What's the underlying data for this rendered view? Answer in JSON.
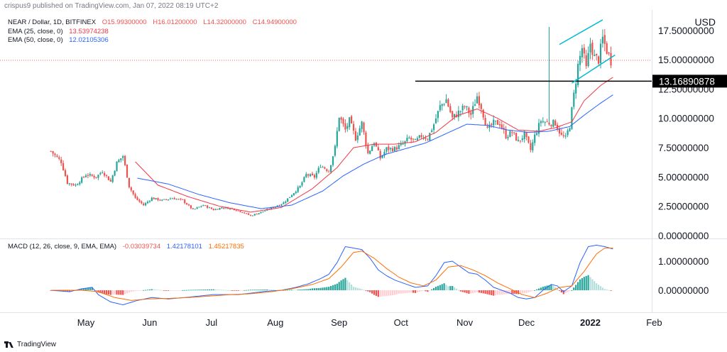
{
  "credit": "crispus9 published on TradingView.com, Jan 07, 2022 08:19 UTC+2",
  "brand": "TradingView",
  "legend": {
    "main": "NEAR / Dollar, 1D, BITFINEX",
    "ohlc": [
      "O15.99300000",
      "H16.01200000",
      "L14.32000000",
      "C14.94900000"
    ],
    "ema25": {
      "label": "EMA (25, close, 0)",
      "value": "13.53974238",
      "color": "#f23645"
    },
    "ema50": {
      "label": "EMA (50, close, 0)",
      "value": "12.02105306",
      "color": "#2962ff"
    },
    "macd": {
      "label": "MACD (12, 26, close, 9, EMA, EMA)",
      "hist": "-0.03039734",
      "macd": "1.42178101",
      "signal": "1.45217835"
    }
  },
  "colors": {
    "up": "#26a69a",
    "down": "#ef5350",
    "macd": "#2962ff",
    "signal": "#ff6d00",
    "channel": "#00bcd4",
    "level": "#000000"
  },
  "chart_data": {
    "type": "candlestick",
    "currency": "USD",
    "price_axis": {
      "ylim": [
        0,
        19
      ],
      "ticks": [
        "17.50000000",
        "15.00000000",
        "12.50000000",
        "10.00000000",
        "7.50000000",
        "5.00000000",
        "2.50000000",
        "0.00000000"
      ],
      "tick_values": [
        17.5,
        15,
        12.5,
        10,
        7.5,
        5,
        2.5,
        0
      ]
    },
    "macd_axis": {
      "ylim": [
        -0.6,
        1.75
      ],
      "ticks": [
        "1.00000000",
        "0.00000000"
      ],
      "tick_values": [
        1,
        0
      ]
    },
    "x_axis": {
      "labels": [
        "May",
        "Jun",
        "Jul",
        "Aug",
        "Sep",
        "Oct",
        "Nov",
        "Dec",
        "2022",
        "Feb"
      ],
      "label_days": [
        0,
        31,
        61,
        92,
        123,
        153,
        184,
        214,
        245,
        276
      ]
    },
    "current_price_label": "14.94900000",
    "horizontal_level": {
      "value": 13.1689,
      "label": "13.16890878",
      "start_day": 160
    },
    "channel": {
      "upper": [
        [
          230,
          16.3
        ],
        [
          251,
          18.4
        ]
      ],
      "lower": [
        [
          236,
          13.0
        ],
        [
          257,
          15.4
        ]
      ]
    },
    "close_anchors": [
      [
        -17,
        7.2
      ],
      [
        -12,
        6.3
      ],
      [
        -9,
        4.5
      ],
      [
        -5,
        4.3
      ],
      [
        0,
        5.2
      ],
      [
        5,
        5.0
      ],
      [
        8,
        5.5
      ],
      [
        12,
        4.6
      ],
      [
        15,
        6.2
      ],
      [
        18,
        6.8
      ],
      [
        21,
        4.2
      ],
      [
        24,
        3.2
      ],
      [
        28,
        2.6
      ],
      [
        32,
        3.2
      ],
      [
        37,
        3.0
      ],
      [
        42,
        3.2
      ],
      [
        47,
        3.0
      ],
      [
        52,
        2.2
      ],
      [
        57,
        2.6
      ],
      [
        62,
        2.2
      ],
      [
        66,
        2.4
      ],
      [
        71,
        2.3
      ],
      [
        76,
        2.0
      ],
      [
        80,
        1.7
      ],
      [
        85,
        2.0
      ],
      [
        88,
        2.2
      ],
      [
        92,
        2.5
      ],
      [
        96,
        2.8
      ],
      [
        100,
        3.5
      ],
      [
        104,
        4.2
      ],
      [
        107,
        5.2
      ],
      [
        111,
        5.0
      ],
      [
        114,
        6.0
      ],
      [
        118,
        5.5
      ],
      [
        121,
        7.5
      ],
      [
        123,
        10.2
      ],
      [
        126,
        9.0
      ],
      [
        128,
        9.8
      ],
      [
        131,
        8.3
      ],
      [
        134,
        9.6
      ],
      [
        137,
        7.0
      ],
      [
        140,
        8.0
      ],
      [
        143,
        6.6
      ],
      [
        146,
        7.4
      ],
      [
        150,
        7.4
      ],
      [
        154,
        7.8
      ],
      [
        157,
        8.3
      ],
      [
        160,
        8.0
      ],
      [
        163,
        8.5
      ],
      [
        166,
        8.3
      ],
      [
        169,
        9.5
      ],
      [
        172,
        11.0
      ],
      [
        175,
        11.6
      ],
      [
        178,
        10.0
      ],
      [
        181,
        10.5
      ],
      [
        184,
        11.0
      ],
      [
        187,
        10.3
      ],
      [
        190,
        11.9
      ],
      [
        192,
        11.0
      ],
      [
        195,
        9.0
      ],
      [
        198,
        9.6
      ],
      [
        201,
        9.6
      ],
      [
        204,
        8.5
      ],
      [
        207,
        8.8
      ],
      [
        210,
        8.0
      ],
      [
        213,
        8.6
      ],
      [
        216,
        7.3
      ],
      [
        218,
        8.5
      ],
      [
        221,
        9.8
      ],
      [
        225,
        9.6
      ],
      [
        228,
        9.6
      ],
      [
        231,
        8.5
      ],
      [
        233,
        8.3
      ],
      [
        235,
        9.4
      ],
      [
        237,
        12.0
      ],
      [
        239,
        14.5
      ],
      [
        241,
        16.0
      ],
      [
        243,
        14.2
      ],
      [
        245,
        16.4
      ],
      [
        247,
        15.2
      ],
      [
        249,
        15.0
      ],
      [
        251,
        16.8
      ],
      [
        253,
        15.8
      ],
      [
        255,
        14.9
      ]
    ],
    "ema25_anchors": [
      [
        24,
        6.3
      ],
      [
        35,
        4.3
      ],
      [
        50,
        3.3
      ],
      [
        65,
        2.5
      ],
      [
        80,
        2.0
      ],
      [
        95,
        2.4
      ],
      [
        110,
        4.0
      ],
      [
        122,
        5.8
      ],
      [
        130,
        7.5
      ],
      [
        140,
        7.8
      ],
      [
        150,
        7.8
      ],
      [
        160,
        8.0
      ],
      [
        170,
        8.8
      ],
      [
        180,
        10.2
      ],
      [
        190,
        10.8
      ],
      [
        200,
        10.0
      ],
      [
        210,
        9.0
      ],
      [
        220,
        8.9
      ],
      [
        228,
        9.2
      ],
      [
        236,
        9.7
      ],
      [
        242,
        11.5
      ],
      [
        250,
        12.8
      ],
      [
        256,
        13.5
      ]
    ],
    "ema50_anchors": [
      [
        25,
        4.9
      ],
      [
        40,
        4.4
      ],
      [
        55,
        3.5
      ],
      [
        70,
        2.8
      ],
      [
        85,
        2.3
      ],
      [
        100,
        2.6
      ],
      [
        115,
        3.8
      ],
      [
        125,
        5.1
      ],
      [
        135,
        6.1
      ],
      [
        145,
        6.9
      ],
      [
        155,
        7.4
      ],
      [
        165,
        7.9
      ],
      [
        175,
        8.7
      ],
      [
        185,
        9.5
      ],
      [
        195,
        9.4
      ],
      [
        205,
        9.0
      ],
      [
        215,
        8.8
      ],
      [
        225,
        8.9
      ],
      [
        235,
        9.3
      ],
      [
        243,
        10.4
      ],
      [
        250,
        11.3
      ],
      [
        256,
        12.0
      ]
    ],
    "macd_anchors": [
      [
        -17,
        0.0
      ],
      [
        -8,
        -0.05
      ],
      [
        -2,
        0.05
      ],
      [
        3,
        0.1
      ],
      [
        6,
        -0.15
      ],
      [
        12,
        -0.4
      ],
      [
        18,
        -0.5
      ],
      [
        25,
        -0.35
      ],
      [
        32,
        -0.25
      ],
      [
        40,
        -0.3
      ],
      [
        48,
        -0.25
      ],
      [
        55,
        -0.2
      ],
      [
        62,
        -0.15
      ],
      [
        68,
        -0.15
      ],
      [
        74,
        -0.15
      ],
      [
        80,
        -0.1
      ],
      [
        88,
        -0.03
      ],
      [
        95,
        0.0
      ],
      [
        102,
        0.1
      ],
      [
        108,
        0.22
      ],
      [
        114,
        0.4
      ],
      [
        118,
        0.55
      ],
      [
        122,
        0.95
      ],
      [
        126,
        1.5
      ],
      [
        130,
        1.45
      ],
      [
        134,
        1.4
      ],
      [
        138,
        1.1
      ],
      [
        142,
        0.7
      ],
      [
        146,
        0.5
      ],
      [
        150,
        0.35
      ],
      [
        154,
        0.25
      ],
      [
        160,
        0.1
      ],
      [
        166,
        0.15
      ],
      [
        170,
        0.5
      ],
      [
        174,
        0.95
      ],
      [
        178,
        1.0
      ],
      [
        182,
        0.8
      ],
      [
        186,
        0.6
      ],
      [
        190,
        0.55
      ],
      [
        194,
        0.35
      ],
      [
        198,
        0.1
      ],
      [
        202,
        0.0
      ],
      [
        206,
        -0.1
      ],
      [
        210,
        -0.25
      ],
      [
        214,
        -0.3
      ],
      [
        218,
        -0.25
      ],
      [
        222,
        0.0
      ],
      [
        226,
        0.2
      ],
      [
        229,
        0.15
      ],
      [
        232,
        -0.05
      ],
      [
        236,
        0.15
      ],
      [
        240,
        0.95
      ],
      [
        244,
        1.5
      ],
      [
        248,
        1.55
      ],
      [
        252,
        1.5
      ],
      [
        256,
        1.42
      ]
    ],
    "signal_anchors": [
      [
        -17,
        0.0
      ],
      [
        -2,
        0.0
      ],
      [
        6,
        -0.05
      ],
      [
        14,
        -0.25
      ],
      [
        22,
        -0.35
      ],
      [
        30,
        -0.3
      ],
      [
        40,
        -0.28
      ],
      [
        50,
        -0.25
      ],
      [
        60,
        -0.2
      ],
      [
        70,
        -0.15
      ],
      [
        80,
        -0.12
      ],
      [
        90,
        -0.05
      ],
      [
        100,
        0.05
      ],
      [
        110,
        0.2
      ],
      [
        118,
        0.4
      ],
      [
        124,
        0.8
      ],
      [
        130,
        1.3
      ],
      [
        134,
        1.35
      ],
      [
        140,
        1.1
      ],
      [
        146,
        0.75
      ],
      [
        152,
        0.45
      ],
      [
        158,
        0.25
      ],
      [
        164,
        0.15
      ],
      [
        170,
        0.35
      ],
      [
        176,
        0.8
      ],
      [
        182,
        0.85
      ],
      [
        188,
        0.7
      ],
      [
        194,
        0.5
      ],
      [
        200,
        0.25
      ],
      [
        206,
        0.05
      ],
      [
        212,
        -0.15
      ],
      [
        218,
        -0.25
      ],
      [
        224,
        -0.1
      ],
      [
        230,
        0.1
      ],
      [
        236,
        0.15
      ],
      [
        242,
        0.65
      ],
      [
        248,
        1.25
      ],
      [
        252,
        1.45
      ],
      [
        256,
        1.45
      ]
    ]
  }
}
